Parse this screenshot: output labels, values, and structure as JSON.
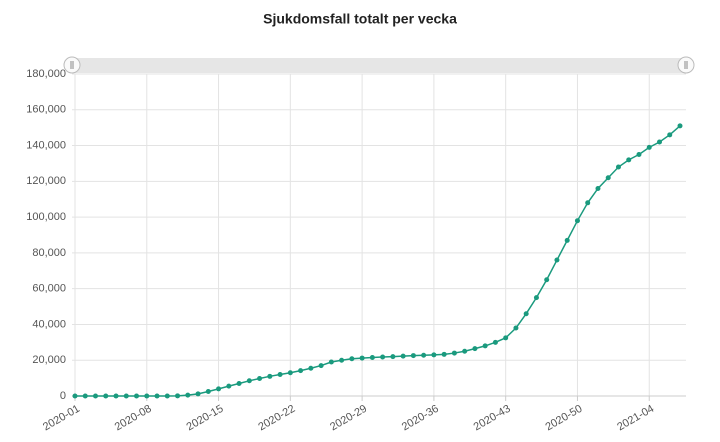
{
  "chart_data": {
    "type": "line",
    "title": "Sjukdomsfall totalt per vecka",
    "categories": [
      "2020-01",
      null,
      null,
      null,
      null,
      null,
      null,
      "2020-08",
      null,
      null,
      null,
      null,
      null,
      null,
      "2020-15",
      null,
      null,
      null,
      null,
      null,
      null,
      "2020-22",
      null,
      null,
      null,
      null,
      null,
      null,
      "2020-29",
      null,
      null,
      null,
      null,
      null,
      null,
      "2020-36",
      null,
      null,
      null,
      null,
      null,
      null,
      "2020-43",
      null,
      null,
      null,
      null,
      null,
      null,
      "2020-50",
      null,
      null,
      null,
      null,
      null,
      null,
      "2021-04",
      null,
      null,
      null
    ],
    "series": [
      {
        "name": "Sjukdomsfall",
        "color": "#1a9a7e",
        "values": [
          0,
          0,
          0,
          0,
          0,
          0,
          0,
          0,
          0,
          0,
          100,
          500,
          1200,
          2500,
          4000,
          5500,
          7000,
          8500,
          9800,
          11000,
          12000,
          13000,
          14200,
          15500,
          17000,
          19000,
          20000,
          20800,
          21200,
          21500,
          21800,
          22000,
          22300,
          22600,
          22800,
          23000,
          23300,
          24000,
          25000,
          26500,
          28000,
          30000,
          32500,
          38000,
          46000,
          55000,
          65000,
          76000,
          87000,
          98000,
          108000,
          116000,
          122000,
          128000,
          132000,
          135000,
          139000,
          142000,
          146000,
          151000
        ]
      }
    ],
    "ylim": [
      0,
      180000
    ],
    "yticks": [
      0,
      {
        "value": 20000,
        "label": "20,000"
      },
      {
        "value": 40000,
        "label": "40,000"
      },
      {
        "value": 60000,
        "label": "60,000"
      },
      {
        "value": 80000,
        "label": "80,000"
      },
      {
        "value": 100000,
        "label": "100,000"
      },
      {
        "value": 120000,
        "label": "120,000"
      },
      {
        "value": 140000,
        "label": "140,000"
      },
      {
        "value": 160000,
        "label": "160,000"
      },
      {
        "value": 180000,
        "label": "180,000"
      }
    ],
    "grid": true
  }
}
